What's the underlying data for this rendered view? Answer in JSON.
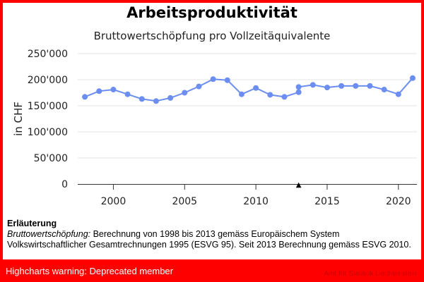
{
  "header": {
    "title": "Arbeitsproduktivität",
    "subtitle": "Bruttowertschöpfung pro Vollzeitäquivalente"
  },
  "chart_data": {
    "type": "line",
    "title": "Arbeitsproduktivität",
    "subtitle": "Bruttowertschöpfung pro Vollzeitäquivalente",
    "xlabel": "",
    "ylabel": "in CHF",
    "ylim": [
      0,
      250000
    ],
    "xlim": [
      1997.5,
      2021.3
    ],
    "y_ticks": [
      0,
      50000,
      100000,
      150000,
      200000,
      250000
    ],
    "y_tick_labels": [
      "0",
      "50'000",
      "100'000",
      "150'000",
      "200'000",
      "250'000"
    ],
    "x_ticks": [
      2000,
      2005,
      2010,
      2015,
      2020
    ],
    "x_tick_labels": [
      "2000",
      "2005",
      "2010",
      "2015",
      "2020"
    ],
    "grid": true,
    "legend": false,
    "color": "#6b8ef0",
    "break_marker": {
      "x": 2013,
      "symbol": "▲"
    },
    "series": [
      {
        "x": [
          1998,
          1999,
          2000,
          2001,
          2002,
          2003,
          2004,
          2005,
          2006,
          2007,
          2008,
          2009,
          2010,
          2011,
          2012,
          2013
        ],
        "values": [
          167000,
          178000,
          181000,
          172000,
          163000,
          159000,
          165000,
          175000,
          187000,
          201000,
          199000,
          172000,
          184000,
          171000,
          167000,
          176000
        ]
      },
      {
        "x": [
          2013,
          2014,
          2015,
          2016,
          2017,
          2018,
          2019,
          2020,
          2021
        ],
        "values": [
          186000,
          190000,
          185000,
          188000,
          188000,
          188000,
          181000,
          172000,
          203000
        ]
      }
    ]
  },
  "note": {
    "title": "Erläuterung",
    "term": "Bruttowertschöpfung:",
    "text": " Berechnung von 1998 bis 2013 gemäss Europäischem System Volkswirtschaftlicher Gesamtrechnungen 1995 (ESVG 95). Seit 2013 Berechnung gemäss ESVG 2010."
  },
  "warning": {
    "text": "Highcharts warning: Deprecated member"
  },
  "credit": {
    "text": "Amt für Statistik Liechtenstein"
  }
}
